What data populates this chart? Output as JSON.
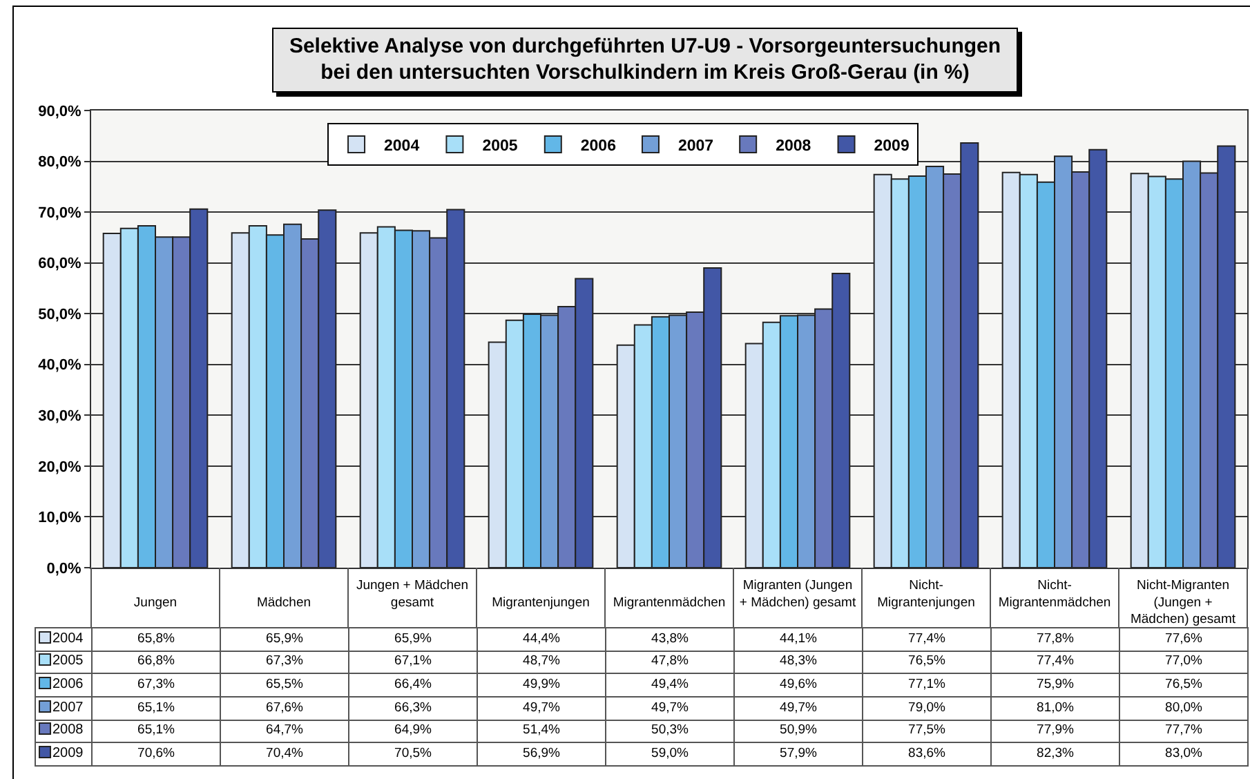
{
  "chart_data": {
    "type": "bar",
    "title": "Selektive Analyse von durchgeführten U7-U9 - Vorsorgeuntersuchungen bei den untersuchten Vorschulkindern im Kreis Groß-Gerau (in %)",
    "categories": [
      "Jungen",
      "Mädchen",
      "Jungen + Mädchen gesamt",
      "Migrantenjungen",
      "Migrantenmädchen",
      "Migranten (Jungen + Mädchen) gesamt",
      "Nicht-Migrantenjungen",
      "Nicht-Migrantenmädchen",
      "Nicht-Migranten (Jungen + Mädchen) gesamt"
    ],
    "series": [
      {
        "name": "2004",
        "color": "#d4e3f4",
        "values": [
          65.8,
          65.9,
          65.9,
          44.4,
          43.8,
          44.1,
          77.4,
          77.8,
          77.6
        ],
        "value_labels": [
          "65,8%",
          "65,9%",
          "65,9%",
          "44,4%",
          "43,8%",
          "44,1%",
          "77,4%",
          "77,8%",
          "77,6%"
        ]
      },
      {
        "name": "2005",
        "color": "#a8dff8",
        "values": [
          66.8,
          67.3,
          67.1,
          48.7,
          47.8,
          48.3,
          76.5,
          77.4,
          77.0
        ],
        "value_labels": [
          "66,8%",
          "67,3%",
          "67,1%",
          "48,7%",
          "47,8%",
          "48,3%",
          "76,5%",
          "77,4%",
          "77,0%"
        ]
      },
      {
        "name": "2006",
        "color": "#62b7e7",
        "values": [
          67.3,
          65.5,
          66.4,
          49.9,
          49.4,
          49.6,
          77.1,
          75.9,
          76.5
        ],
        "value_labels": [
          "67,3%",
          "65,5%",
          "66,4%",
          "49,9%",
          "49,4%",
          "49,6%",
          "77,1%",
          "75,9%",
          "76,5%"
        ]
      },
      {
        "name": "2007",
        "color": "#739fd7",
        "values": [
          65.1,
          67.6,
          66.3,
          49.7,
          49.7,
          49.7,
          79.0,
          81.0,
          80.0
        ],
        "value_labels": [
          "65,1%",
          "67,6%",
          "66,3%",
          "49,7%",
          "49,7%",
          "49,7%",
          "79,0%",
          "81,0%",
          "80,0%"
        ]
      },
      {
        "name": "2008",
        "color": "#6879bd",
        "values": [
          65.1,
          64.7,
          64.9,
          51.4,
          50.3,
          50.9,
          77.5,
          77.9,
          77.7
        ],
        "value_labels": [
          "65,1%",
          "64,7%",
          "64,9%",
          "51,4%",
          "50,3%",
          "50,9%",
          "77,5%",
          "77,9%",
          "77,7%"
        ]
      },
      {
        "name": "2009",
        "color": "#4257a6",
        "values": [
          70.6,
          70.4,
          70.5,
          56.9,
          59.0,
          57.9,
          83.6,
          82.3,
          83.0
        ],
        "value_labels": [
          "70,6%",
          "70,4%",
          "70,5%",
          "56,9%",
          "59,0%",
          "57,9%",
          "83,6%",
          "82,3%",
          "83,0%"
        ]
      }
    ],
    "ylim": [
      0,
      90
    ],
    "yticks": [
      {
        "value": 0,
        "label": "0,0%"
      },
      {
        "value": 10,
        "label": "10,0%"
      },
      {
        "value": 20,
        "label": "20,0%"
      },
      {
        "value": 30,
        "label": "30,0%"
      },
      {
        "value": 40,
        "label": "40,0%"
      },
      {
        "value": 50,
        "label": "50,0%"
      },
      {
        "value": 60,
        "label": "60,0%"
      },
      {
        "value": 70,
        "label": "70,0%"
      },
      {
        "value": 80,
        "label": "80,0%"
      },
      {
        "value": 90,
        "label": "90,0%"
      }
    ],
    "grid": "y",
    "legend": "top"
  }
}
